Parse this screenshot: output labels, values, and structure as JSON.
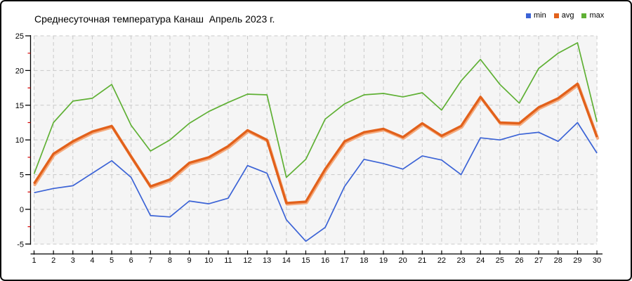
{
  "chart_data": {
    "type": "line",
    "title": "Среднесуточная температура Канаш  Апрель 2023 г.",
    "categories": [
      1,
      2,
      3,
      4,
      5,
      6,
      7,
      8,
      9,
      10,
      11,
      12,
      13,
      14,
      15,
      16,
      17,
      18,
      19,
      20,
      21,
      22,
      23,
      24,
      25,
      26,
      27,
      28,
      29,
      30
    ],
    "series": [
      {
        "name": "min",
        "color": "#3b63d6",
        "values": [
          2.4,
          3.0,
          3.4,
          5.2,
          7.0,
          4.6,
          -0.9,
          -1.1,
          1.2,
          0.8,
          1.6,
          6.3,
          5.2,
          -1.5,
          -4.6,
          -2.6,
          3.3,
          7.2,
          6.6,
          5.8,
          7.7,
          7.1,
          5.0,
          10.3,
          10.0,
          10.8,
          11.1,
          9.8,
          12.5,
          8.1
        ]
      },
      {
        "name": "avg",
        "color": "#e2611b",
        "halo_color": "#f5ab7e",
        "values": [
          3.7,
          8.0,
          9.8,
          11.2,
          12.0,
          7.6,
          3.3,
          4.3,
          6.7,
          7.5,
          9.1,
          11.4,
          10.0,
          0.9,
          1.1,
          5.8,
          9.8,
          11.1,
          11.6,
          10.4,
          12.4,
          10.6,
          12.0,
          16.2,
          12.5,
          12.4,
          14.7,
          16.0,
          18.1,
          10.4
        ]
      },
      {
        "name": "max",
        "color": "#5fb034",
        "values": [
          5.1,
          12.5,
          15.6,
          16.0,
          18.0,
          12.1,
          8.4,
          10.0,
          12.4,
          14.1,
          15.4,
          16.6,
          16.5,
          4.6,
          7.2,
          13.0,
          15.2,
          16.5,
          16.7,
          16.2,
          16.8,
          14.3,
          18.5,
          21.6,
          18.0,
          15.3,
          20.3,
          22.5,
          24.0,
          12.6
        ]
      }
    ],
    "xlabel": "",
    "ylabel": "",
    "ylim": [
      -5,
      25
    ],
    "yticks": [
      25,
      20,
      15,
      10,
      5,
      0,
      -5
    ],
    "minor_yticks": [
      22.5,
      17.5,
      12.5,
      7.5,
      2.5,
      -2.5
    ],
    "minor_ytick_color": "#d40000",
    "grid": "dashed",
    "grid_color": "#c9c9c9",
    "plot_bg": "#f5f5f5",
    "axis_color": "#000000",
    "legend_position": "top-right"
  }
}
